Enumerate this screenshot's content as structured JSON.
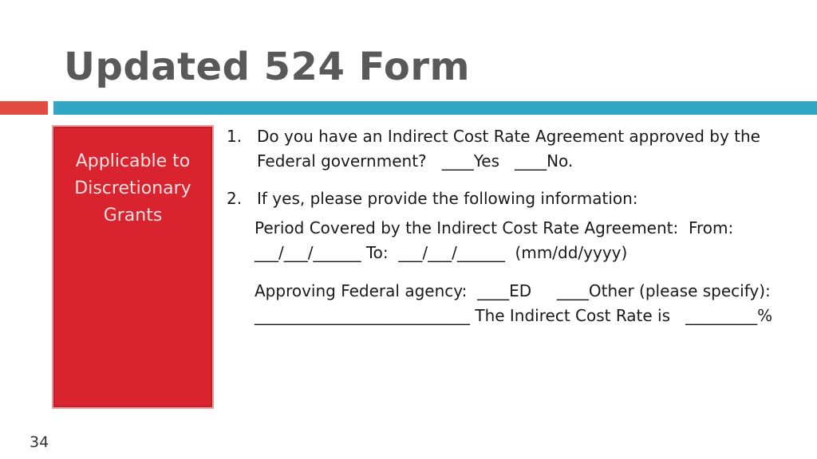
{
  "slide": {
    "title": "Updated 524 Form",
    "page_number": "34"
  },
  "sidebar_box": {
    "text": "Applicable to\nDiscretionary\nGrants"
  },
  "questions": [
    {
      "number": "1.",
      "text": "Do you have an Indirect Cost Rate Agreement approved by the Federal government?   ____Yes   ____No."
    },
    {
      "number": "2.",
      "text": "If yes, please provide the following information:"
    }
  ],
  "details": {
    "period": "Period Covered by the Indirect Cost Rate Agreement:  From: ___/___/______ To:  ___/___/______  (mm/dd/yyyy)",
    "agency": "Approving Federal agency:  ____ED     ____Other (please specify):  ___________________________ The Indirect Cost Rate is   _________%"
  },
  "colors": {
    "accent_red": "#e24b3f",
    "accent_teal": "#31a6c4",
    "box_red": "#d9232f",
    "title_gray": "#595959"
  }
}
